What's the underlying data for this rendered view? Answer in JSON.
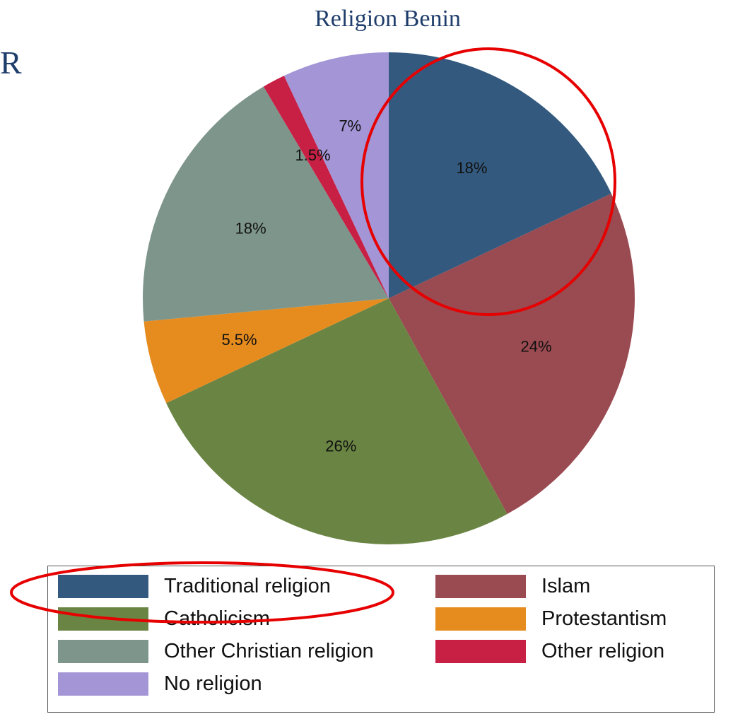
{
  "slide": {
    "fragment_text": "R"
  },
  "chart_data": {
    "type": "pie",
    "title": "Religion Benin",
    "slices": [
      {
        "label": "Traditional religion",
        "value": 18,
        "display": "18%",
        "color": "#335a7e"
      },
      {
        "label": "Islam",
        "value": 24,
        "display": "24%",
        "color": "#9a4a51"
      },
      {
        "label": "Catholicism",
        "value": 26,
        "display": "26%",
        "color": "#6a8543"
      },
      {
        "label": "Protestantism",
        "value": 5.5,
        "display": "5.5%",
        "color": "#e68c1f"
      },
      {
        "label": "Other Christian religion",
        "value": 18,
        "display": "18%",
        "color": "#7d958a"
      },
      {
        "label": "Other religion",
        "value": 1.5,
        "display": "1.5%",
        "color": "#c81f45"
      },
      {
        "label": "No religion",
        "value": 7,
        "display": "7%",
        "color": "#a395d6"
      }
    ],
    "start_angle": "12 o'clock",
    "direction": "clockwise",
    "legend_position": "bottom",
    "legend_columns": 2
  },
  "annotations": {
    "highlight_color": "#e60000",
    "highlighted_slice": "Traditional religion",
    "highlighted_legend_entry": "Traditional religion"
  }
}
